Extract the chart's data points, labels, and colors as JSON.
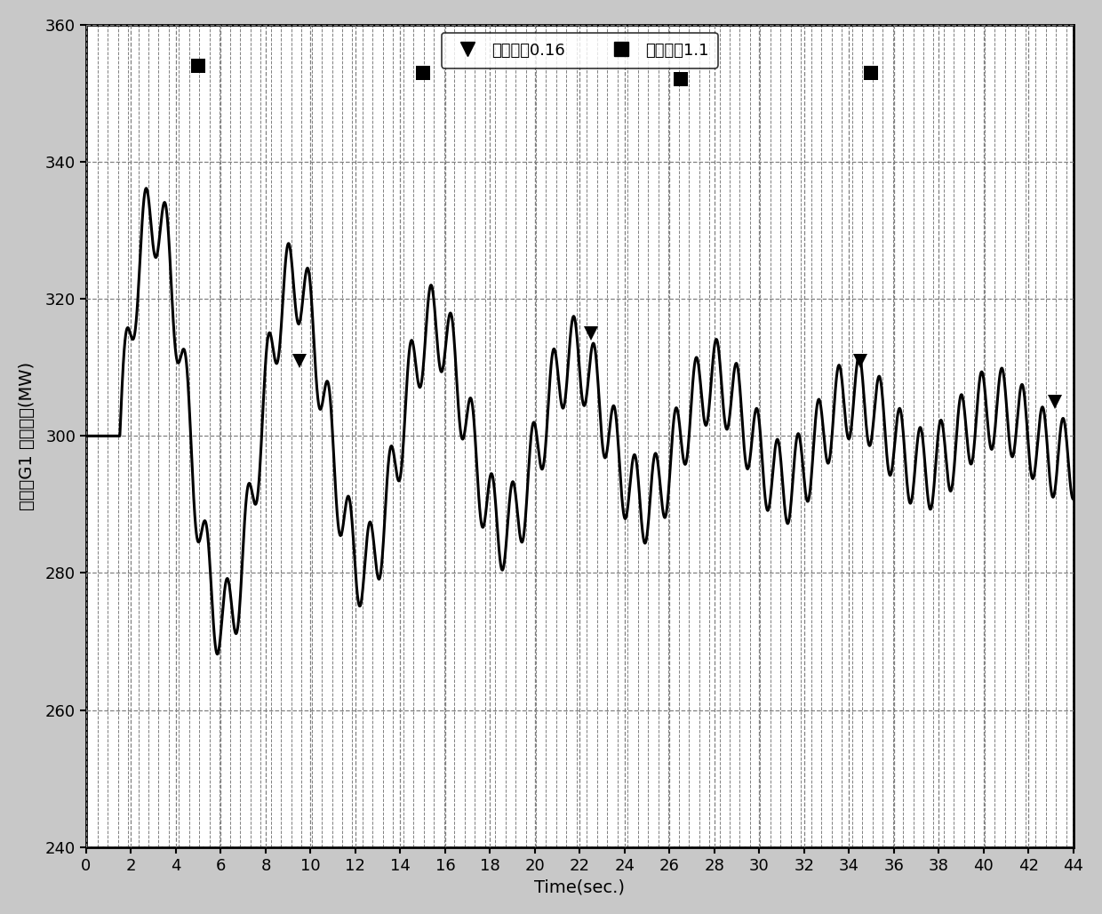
{
  "xlabel": "Time(sec.)",
  "ylabel": "渝白鹤G1 电磁功率(MW)",
  "xlim": [
    0,
    44
  ],
  "ylim": [
    240,
    360
  ],
  "yticks": [
    240,
    260,
    280,
    300,
    320,
    340,
    360
  ],
  "xticks": [
    0,
    2,
    4,
    6,
    8,
    10,
    12,
    14,
    16,
    18,
    20,
    22,
    24,
    26,
    28,
    30,
    32,
    34,
    36,
    38,
    40,
    42,
    44
  ],
  "legend_labels": [
    "扝动频率0.16",
    "扝动频率1.1"
  ],
  "line_color": "#000000",
  "plot_bg": "#ffffff",
  "outer_bg": "#c8c8c8",
  "grid_color": "#808080",
  "freq_low": 0.16,
  "freq_high": 1.1,
  "base_power": 300,
  "amp_low": 35,
  "amp_high": 6,
  "decay_low": 0.055,
  "t_start": 1.5,
  "marker_low_times": [
    9.5,
    22.5,
    34.5,
    43.2
  ],
  "marker_low_values": [
    311,
    315,
    311,
    305
  ],
  "marker_high_times": [
    5.0,
    15.0,
    26.5,
    35.0
  ],
  "marker_high_values": [
    354,
    353,
    352,
    353
  ],
  "marker_fontsize": 14,
  "legend_fontsize": 13,
  "tick_fontsize": 13,
  "axis_label_fontsize": 14
}
